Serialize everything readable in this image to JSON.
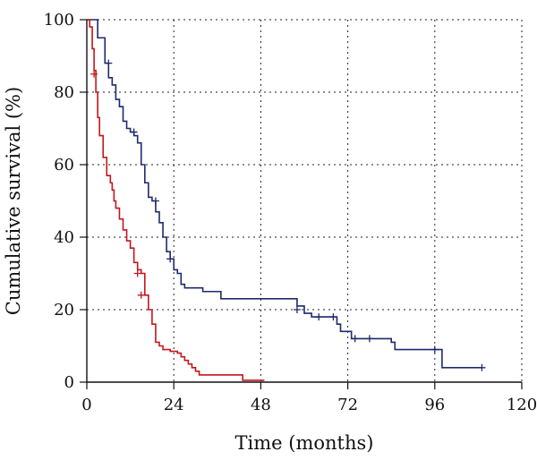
{
  "chart_data": {
    "type": "line",
    "title": "",
    "xlabel": "Time (months)",
    "ylabel": "Cumulative survival (%)",
    "xlim": [
      0,
      120
    ],
    "ylim": [
      0,
      100
    ],
    "xticks": [
      0,
      24,
      48,
      72,
      96,
      120
    ],
    "yticks": [
      0,
      20,
      40,
      60,
      80,
      100
    ],
    "grid": true,
    "step": true,
    "series": [
      {
        "color": "#1f2a6b",
        "points": [
          [
            0,
            100
          ],
          [
            1.5,
            100
          ],
          [
            2.5,
            100
          ],
          [
            3,
            95
          ],
          [
            4,
            95
          ],
          [
            5,
            88
          ],
          [
            6,
            84
          ],
          [
            7,
            82
          ],
          [
            8,
            78
          ],
          [
            9,
            76
          ],
          [
            10,
            72
          ],
          [
            11,
            70
          ],
          [
            12,
            69
          ],
          [
            13,
            68
          ],
          [
            14,
            66
          ],
          [
            15,
            60
          ],
          [
            16,
            55
          ],
          [
            17,
            51
          ],
          [
            18,
            50
          ],
          [
            19,
            47
          ],
          [
            20,
            44
          ],
          [
            21,
            40
          ],
          [
            22,
            36
          ],
          [
            23,
            34
          ],
          [
            24,
            31
          ],
          [
            25,
            30
          ],
          [
            26,
            27
          ],
          [
            27,
            26
          ],
          [
            32,
            25
          ],
          [
            37,
            23
          ],
          [
            58,
            21
          ],
          [
            60,
            19
          ],
          [
            62,
            18
          ],
          [
            69,
            16
          ],
          [
            70,
            14
          ],
          [
            73,
            12
          ],
          [
            84,
            11
          ],
          [
            85,
            9
          ],
          [
            96,
            9
          ],
          [
            98,
            4
          ],
          [
            109,
            4
          ]
        ],
        "censored": [
          [
            6,
            88
          ],
          [
            13,
            69
          ],
          [
            19,
            50
          ],
          [
            23,
            34
          ],
          [
            58,
            20
          ],
          [
            64,
            18
          ],
          [
            68,
            18
          ],
          [
            74,
            12
          ],
          [
            78,
            12
          ],
          [
            96,
            9
          ],
          [
            109,
            4
          ]
        ]
      },
      {
        "color": "#c4161c",
        "points": [
          [
            0,
            100
          ],
          [
            0.8,
            98
          ],
          [
            1.5,
            92
          ],
          [
            2,
            86
          ],
          [
            2.5,
            80
          ],
          [
            3,
            73
          ],
          [
            3.5,
            68
          ],
          [
            4.5,
            62
          ],
          [
            5.5,
            57
          ],
          [
            6.5,
            55
          ],
          [
            7,
            53
          ],
          [
            7.5,
            50
          ],
          [
            8,
            48
          ],
          [
            9,
            45
          ],
          [
            10,
            42
          ],
          [
            11,
            39
          ],
          [
            12,
            37
          ],
          [
            13,
            33
          ],
          [
            14,
            31
          ],
          [
            15,
            30
          ],
          [
            16,
            24
          ],
          [
            17,
            20
          ],
          [
            18,
            16
          ],
          [
            19,
            11
          ],
          [
            20,
            10
          ],
          [
            21,
            9
          ],
          [
            23,
            8.5
          ],
          [
            25,
            8
          ],
          [
            26,
            7
          ],
          [
            27,
            6
          ],
          [
            28,
            5
          ],
          [
            29,
            4
          ],
          [
            30,
            3
          ],
          [
            31,
            2
          ],
          [
            37,
            2
          ],
          [
            43,
            0.5
          ],
          [
            49,
            0.5
          ]
        ],
        "censored": [
          [
            2,
            85
          ],
          [
            14,
            30
          ],
          [
            15,
            24
          ]
        ]
      }
    ]
  }
}
